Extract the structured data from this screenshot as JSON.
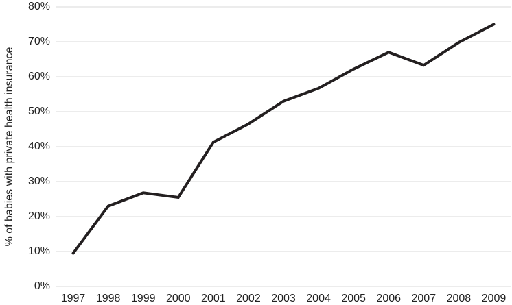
{
  "chart_data": {
    "type": "line",
    "y_label": "% of babies with private health insurance",
    "categories": [
      "1997",
      "1998",
      "1999",
      "2000",
      "2001",
      "2002",
      "2003",
      "2004",
      "2005",
      "2006",
      "2007",
      "2008",
      "2009"
    ],
    "values": [
      9.5,
      23,
      26.8,
      25.5,
      41.3,
      46.5,
      53,
      56.7,
      62.2,
      67,
      63.3,
      69.8,
      75
    ],
    "color": "#231f20",
    "ylim": [
      0,
      80
    ],
    "yticks": [
      {
        "value": 0,
        "label": "0%"
      },
      {
        "value": 10,
        "label": "10%"
      },
      {
        "value": 20,
        "label": "20%"
      },
      {
        "value": 30,
        "label": "30%"
      },
      {
        "value": 40,
        "label": "40%"
      },
      {
        "value": 50,
        "label": "50%"
      },
      {
        "value": 60,
        "label": "60%"
      },
      {
        "value": 70,
        "label": "70%"
      },
      {
        "value": 80,
        "label": "80%"
      }
    ],
    "grid": true
  }
}
